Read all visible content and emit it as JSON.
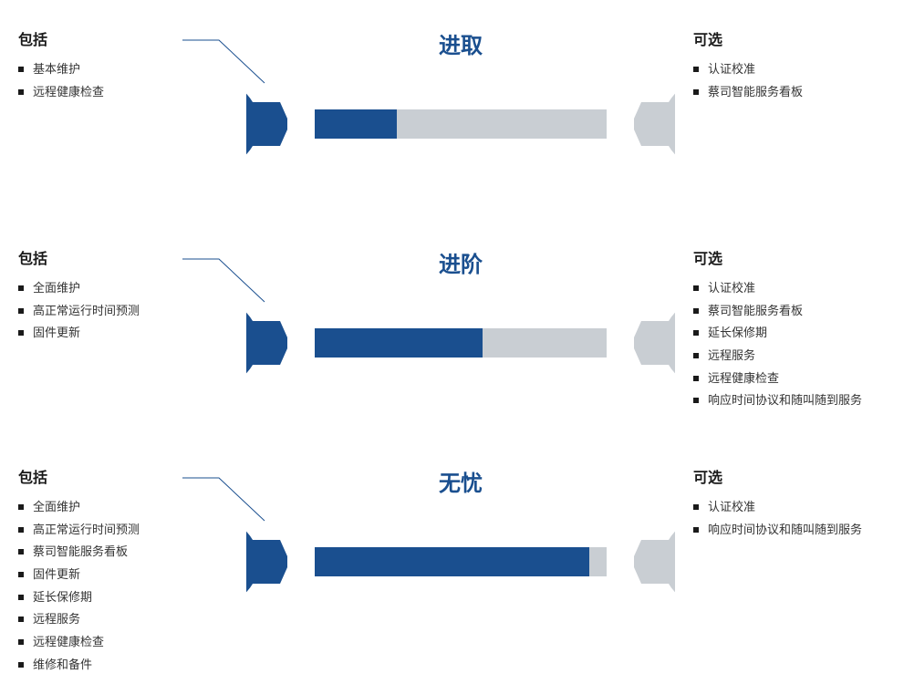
{
  "colors": {
    "brand_blue": "#1a4f8f",
    "light_gray": "#c9ced3",
    "text": "#1a1a1a",
    "title_blue": "#1a4f8f",
    "background": "#ffffff"
  },
  "typography": {
    "heading_fontsize": 16,
    "item_fontsize": 13,
    "title_fontsize": 24
  },
  "layout": {
    "tier_height": 200,
    "wrench_width": 470,
    "wrench_height": 130
  },
  "labels": {
    "included": "包括",
    "optional": "可选"
  },
  "tiers": [
    {
      "id": "entry",
      "title": "进取",
      "fill_ratio": 0.35,
      "included": [
        "基本维护",
        "远程健康检查"
      ],
      "optional": [
        "认证校准",
        "蔡司智能服务看板"
      ]
    },
    {
      "id": "advanced",
      "title": "进阶",
      "fill_ratio": 0.55,
      "included": [
        "全面维护",
        "高正常运行时间预测",
        "固件更新"
      ],
      "optional": [
        "认证校准",
        "蔡司智能服务看板",
        "延长保修期",
        "远程服务",
        "远程健康检查",
        "响应时间协议和随叫随到服务"
      ]
    },
    {
      "id": "worryfree",
      "title": "无忧",
      "fill_ratio": 0.8,
      "included": [
        "全面维护",
        "高正常运行时间预测",
        "蔡司智能服务看板",
        "固件更新",
        "延长保修期",
        "远程服务",
        "远程健康检查",
        "维修和备件"
      ],
      "optional": [
        "认证校准",
        "响应时间协议和随叫随到服务"
      ]
    }
  ]
}
